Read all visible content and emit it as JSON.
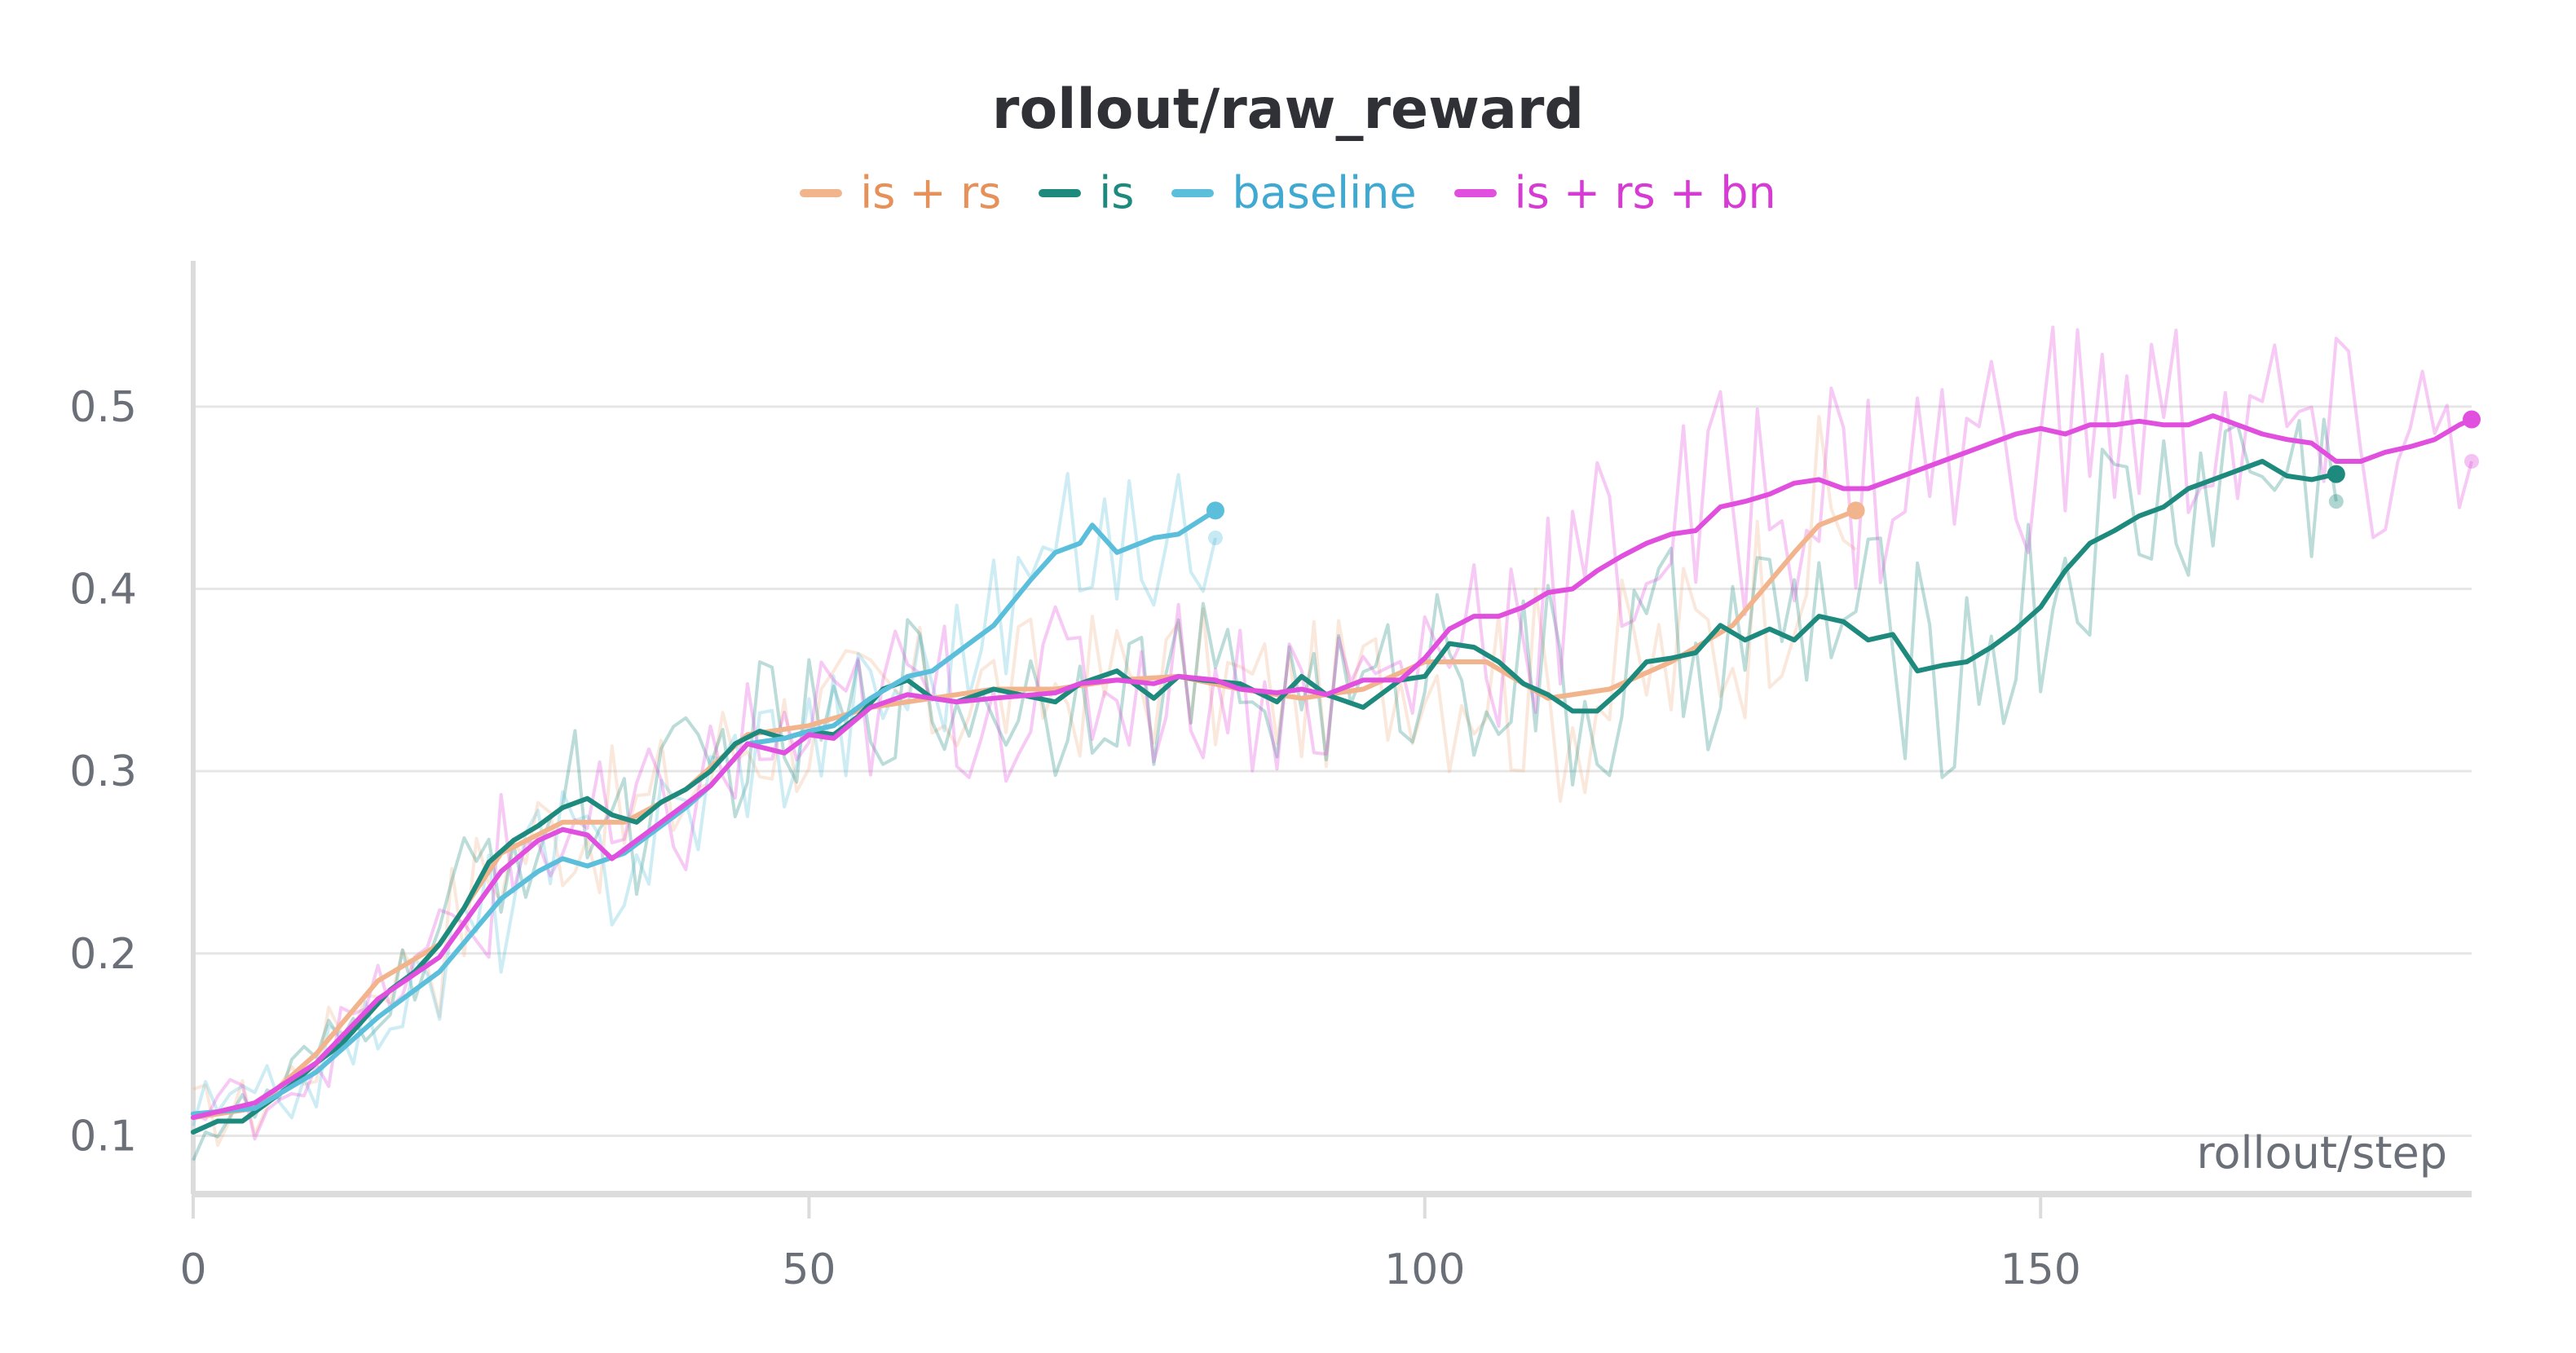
{
  "chart_data": {
    "type": "line",
    "title": "rollout/raw_reward",
    "xlabel": "rollout/step",
    "ylabel": "",
    "xlim": [
      0,
      185
    ],
    "ylim": [
      0.068,
      0.58
    ],
    "x_ticks": [
      "0",
      "50",
      "100",
      "150"
    ],
    "y_ticks": [
      "0.1",
      "0.2",
      "0.3",
      "0.4",
      "0.5"
    ],
    "grid": "horizontal",
    "legend_position": "top-center",
    "series": [
      {
        "name": "is + rs",
        "color": "#f2b48c",
        "text_color": "#e6915a",
        "end_x": 135,
        "smoothed": [
          [
            0,
            0.11
          ],
          [
            5,
            0.115
          ],
          [
            10,
            0.145
          ],
          [
            15,
            0.185
          ],
          [
            20,
            0.205
          ],
          [
            25,
            0.255
          ],
          [
            30,
            0.272
          ],
          [
            35,
            0.272
          ],
          [
            40,
            0.29
          ],
          [
            45,
            0.32
          ],
          [
            50,
            0.325
          ],
          [
            55,
            0.335
          ],
          [
            60,
            0.34
          ],
          [
            65,
            0.345
          ],
          [
            70,
            0.345
          ],
          [
            75,
            0.35
          ],
          [
            80,
            0.352
          ],
          [
            85,
            0.345
          ],
          [
            90,
            0.34
          ],
          [
            95,
            0.345
          ],
          [
            100,
            0.36
          ],
          [
            105,
            0.36
          ],
          [
            110,
            0.34
          ],
          [
            115,
            0.345
          ],
          [
            120,
            0.36
          ],
          [
            125,
            0.38
          ],
          [
            130,
            0.42
          ],
          [
            132,
            0.435
          ],
          [
            135,
            0.443
          ]
        ],
        "end_marker": 0.443
      },
      {
        "name": "is",
        "color": "#1e8a7e",
        "text_color": "#1e8a7e",
        "end_x": 174,
        "smoothed": [
          [
            0,
            0.102
          ],
          [
            2,
            0.108
          ],
          [
            4,
            0.108
          ],
          [
            6,
            0.118
          ],
          [
            8,
            0.128
          ],
          [
            10,
            0.14
          ],
          [
            12,
            0.15
          ],
          [
            14,
            0.165
          ],
          [
            16,
            0.18
          ],
          [
            18,
            0.19
          ],
          [
            20,
            0.205
          ],
          [
            22,
            0.225
          ],
          [
            24,
            0.25
          ],
          [
            26,
            0.262
          ],
          [
            28,
            0.27
          ],
          [
            30,
            0.28
          ],
          [
            32,
            0.285
          ],
          [
            34,
            0.276
          ],
          [
            36,
            0.272
          ],
          [
            38,
            0.283
          ],
          [
            40,
            0.29
          ],
          [
            42,
            0.3
          ],
          [
            44,
            0.315
          ],
          [
            46,
            0.322
          ],
          [
            48,
            0.318
          ],
          [
            50,
            0.322
          ],
          [
            52,
            0.32
          ],
          [
            54,
            0.33
          ],
          [
            56,
            0.345
          ],
          [
            58,
            0.35
          ],
          [
            60,
            0.34
          ],
          [
            62,
            0.338
          ],
          [
            65,
            0.345
          ],
          [
            70,
            0.338
          ],
          [
            72,
            0.348
          ],
          [
            75,
            0.355
          ],
          [
            78,
            0.34
          ],
          [
            80,
            0.352
          ],
          [
            82,
            0.35
          ],
          [
            85,
            0.348
          ],
          [
            88,
            0.338
          ],
          [
            90,
            0.352
          ],
          [
            92,
            0.342
          ],
          [
            95,
            0.335
          ],
          [
            98,
            0.35
          ],
          [
            100,
            0.352
          ],
          [
            102,
            0.37
          ],
          [
            104,
            0.368
          ],
          [
            106,
            0.36
          ],
          [
            108,
            0.348
          ],
          [
            110,
            0.342
          ],
          [
            112,
            0.333
          ],
          [
            114,
            0.333
          ],
          [
            116,
            0.345
          ],
          [
            118,
            0.36
          ],
          [
            120,
            0.362
          ],
          [
            122,
            0.365
          ],
          [
            124,
            0.38
          ],
          [
            126,
            0.372
          ],
          [
            128,
            0.378
          ],
          [
            130,
            0.372
          ],
          [
            132,
            0.385
          ],
          [
            134,
            0.382
          ],
          [
            136,
            0.372
          ],
          [
            138,
            0.375
          ],
          [
            140,
            0.355
          ],
          [
            142,
            0.358
          ],
          [
            144,
            0.36
          ],
          [
            146,
            0.368
          ],
          [
            148,
            0.378
          ],
          [
            150,
            0.39
          ],
          [
            152,
            0.41
          ],
          [
            154,
            0.425
          ],
          [
            156,
            0.432
          ],
          [
            158,
            0.44
          ],
          [
            160,
            0.445
          ],
          [
            162,
            0.455
          ],
          [
            164,
            0.46
          ],
          [
            166,
            0.465
          ],
          [
            168,
            0.47
          ],
          [
            170,
            0.462
          ],
          [
            172,
            0.46
          ],
          [
            174,
            0.463
          ]
        ],
        "end_marker": 0.463,
        "raw_end": 0.448
      },
      {
        "name": "baseline",
        "color": "#5bbfdc",
        "text_color": "#3fa9d1",
        "end_x": 83,
        "smoothed": [
          [
            0,
            0.112
          ],
          [
            5,
            0.115
          ],
          [
            10,
            0.135
          ],
          [
            15,
            0.165
          ],
          [
            20,
            0.19
          ],
          [
            25,
            0.23
          ],
          [
            28,
            0.245
          ],
          [
            30,
            0.252
          ],
          [
            32,
            0.248
          ],
          [
            35,
            0.255
          ],
          [
            38,
            0.27
          ],
          [
            40,
            0.28
          ],
          [
            42,
            0.292
          ],
          [
            45,
            0.315
          ],
          [
            48,
            0.318
          ],
          [
            50,
            0.322
          ],
          [
            52,
            0.325
          ],
          [
            55,
            0.34
          ],
          [
            58,
            0.352
          ],
          [
            60,
            0.355
          ],
          [
            62,
            0.365
          ],
          [
            65,
            0.38
          ],
          [
            68,
            0.405
          ],
          [
            70,
            0.42
          ],
          [
            72,
            0.425
          ],
          [
            73,
            0.435
          ],
          [
            75,
            0.42
          ],
          [
            78,
            0.428
          ],
          [
            80,
            0.43
          ],
          [
            83,
            0.443
          ]
        ],
        "end_marker": 0.443,
        "raw_end": 0.428
      },
      {
        "name": "is + rs + bn",
        "color": "#e04fde",
        "text_color": "#d63bd4",
        "end_x": 185,
        "smoothed": [
          [
            0,
            0.11
          ],
          [
            5,
            0.118
          ],
          [
            10,
            0.14
          ],
          [
            15,
            0.175
          ],
          [
            20,
            0.198
          ],
          [
            25,
            0.245
          ],
          [
            28,
            0.262
          ],
          [
            30,
            0.268
          ],
          [
            32,
            0.265
          ],
          [
            34,
            0.252
          ],
          [
            36,
            0.262
          ],
          [
            38,
            0.272
          ],
          [
            40,
            0.282
          ],
          [
            42,
            0.292
          ],
          [
            45,
            0.315
          ],
          [
            48,
            0.31
          ],
          [
            50,
            0.32
          ],
          [
            52,
            0.318
          ],
          [
            55,
            0.335
          ],
          [
            58,
            0.342
          ],
          [
            60,
            0.34
          ],
          [
            62,
            0.338
          ],
          [
            65,
            0.34
          ],
          [
            70,
            0.343
          ],
          [
            72,
            0.348
          ],
          [
            75,
            0.35
          ],
          [
            78,
            0.348
          ],
          [
            80,
            0.352
          ],
          [
            83,
            0.35
          ],
          [
            85,
            0.345
          ],
          [
            88,
            0.343
          ],
          [
            90,
            0.345
          ],
          [
            92,
            0.342
          ],
          [
            95,
            0.35
          ],
          [
            98,
            0.35
          ],
          [
            100,
            0.362
          ],
          [
            102,
            0.378
          ],
          [
            104,
            0.385
          ],
          [
            106,
            0.385
          ],
          [
            108,
            0.39
          ],
          [
            110,
            0.398
          ],
          [
            112,
            0.4
          ],
          [
            114,
            0.41
          ],
          [
            116,
            0.418
          ],
          [
            118,
            0.425
          ],
          [
            120,
            0.43
          ],
          [
            122,
            0.432
          ],
          [
            124,
            0.445
          ],
          [
            126,
            0.448
          ],
          [
            128,
            0.452
          ],
          [
            130,
            0.458
          ],
          [
            132,
            0.46
          ],
          [
            134,
            0.455
          ],
          [
            136,
            0.455
          ],
          [
            138,
            0.46
          ],
          [
            140,
            0.465
          ],
          [
            142,
            0.47
          ],
          [
            144,
            0.475
          ],
          [
            146,
            0.48
          ],
          [
            148,
            0.485
          ],
          [
            150,
            0.488
          ],
          [
            152,
            0.485
          ],
          [
            154,
            0.49
          ],
          [
            156,
            0.49
          ],
          [
            158,
            0.492
          ],
          [
            160,
            0.49
          ],
          [
            162,
            0.49
          ],
          [
            164,
            0.495
          ],
          [
            166,
            0.49
          ],
          [
            168,
            0.485
          ],
          [
            170,
            0.482
          ],
          [
            172,
            0.48
          ],
          [
            174,
            0.47
          ],
          [
            176,
            0.47
          ],
          [
            178,
            0.475
          ],
          [
            180,
            0.478
          ],
          [
            182,
            0.482
          ],
          [
            184,
            0.49
          ],
          [
            185,
            0.493
          ]
        ],
        "end_marker": 0.493,
        "raw_end": 0.47
      }
    ]
  }
}
